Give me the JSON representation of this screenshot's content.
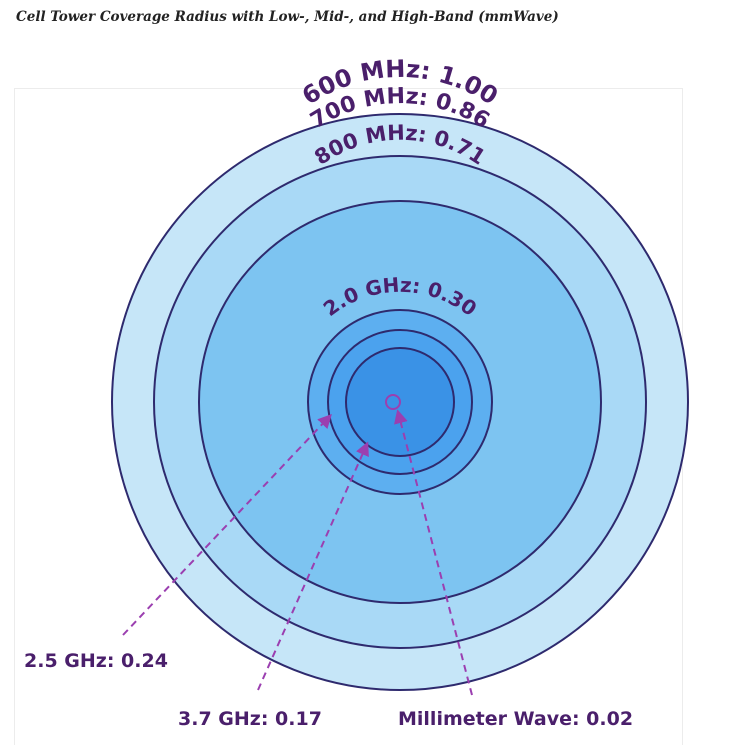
{
  "caption": "Cell Tower Coverage Radius with Low-, Mid-, and High-Band (mmWave)",
  "rings": [
    {
      "label": "600 MHz: 1.00",
      "color": "#c6e6f8"
    },
    {
      "label": "700 MHz: 0.86",
      "color": "#a9d9f6"
    },
    {
      "label": "800 MHz: 0.71",
      "color": "#7dc4f1"
    },
    {
      "label": "2.0 GHz: 0.30",
      "color": "#5daff0"
    },
    {
      "label": "2.5 GHz: 0.24",
      "color": "#4ba2ee"
    },
    {
      "label": "3.7 GHz: 0.17",
      "color": "#3a92e6"
    },
    {
      "label": "Millimeter Wave: 0.02",
      "color": "#ffffff"
    }
  ],
  "colors": {
    "ring_stroke": "#2e2a6e",
    "label_text": "#4a1f6b",
    "pointer": "#9b3fb0"
  }
}
